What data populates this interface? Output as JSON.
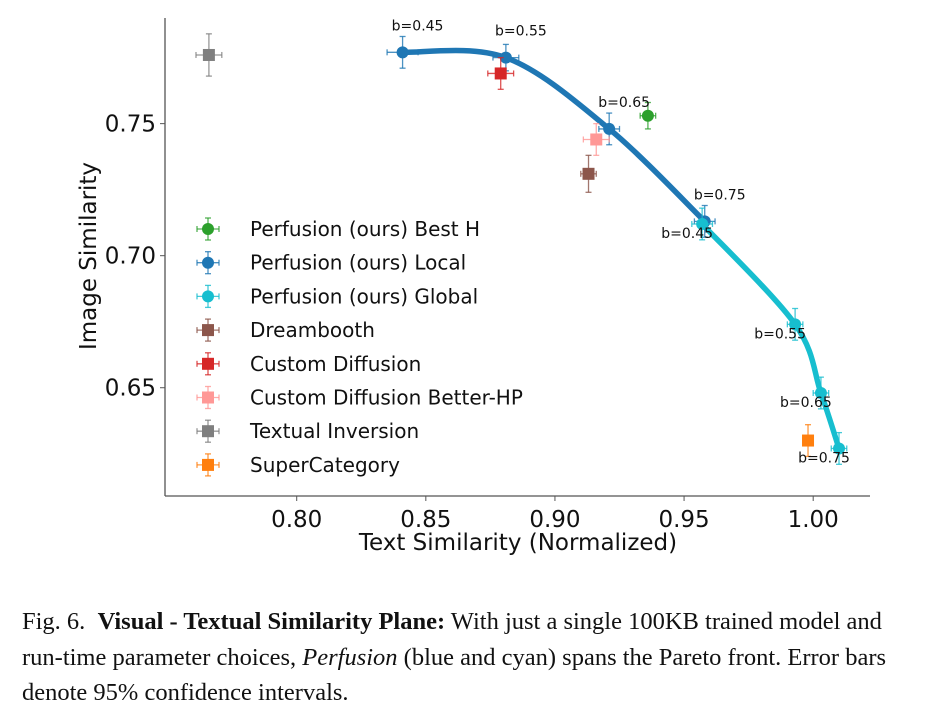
{
  "chart_data": {
    "type": "scatter",
    "xlabel": "Text Similarity (Normalized)",
    "ylabel": "Image Similarity",
    "xlim": [
      0.749,
      1.022
    ],
    "ylim": [
      0.609,
      0.79
    ],
    "xticks": [
      "0.80",
      "0.85",
      "0.90",
      "0.95",
      "1.00"
    ],
    "yticks": [
      "0.65",
      "0.70",
      "0.75"
    ],
    "grid": false,
    "legend_placement": "center-left",
    "series": [
      {
        "name": "Perfusion (ours) Best H",
        "color": "#2ca02c",
        "marker": "circle",
        "line": false,
        "points": [
          {
            "x": 0.936,
            "y": 0.753,
            "xerr": 0.003,
            "yerr": 0.005
          }
        ]
      },
      {
        "name": "Perfusion (ours) Local",
        "color": "#1f77b4",
        "marker": "circle",
        "line": true,
        "points": [
          {
            "x": 0.841,
            "y": 0.777,
            "xerr": 0.006,
            "yerr": 0.006,
            "label": "b=0.45"
          },
          {
            "x": 0.881,
            "y": 0.775,
            "xerr": 0.005,
            "yerr": 0.005,
            "label": "b=0.55"
          },
          {
            "x": 0.921,
            "y": 0.748,
            "xerr": 0.004,
            "yerr": 0.006,
            "label": "b=0.65"
          },
          {
            "x": 0.958,
            "y": 0.713,
            "xerr": 0.004,
            "yerr": 0.006,
            "label": "b=0.75"
          }
        ]
      },
      {
        "name": "Perfusion (ours) Global",
        "color": "#17becf",
        "marker": "circle",
        "line": true,
        "points": [
          {
            "x": 0.957,
            "y": 0.712,
            "xerr": 0.004,
            "yerr": 0.006,
            "label": "b=0.45"
          },
          {
            "x": 0.993,
            "y": 0.674,
            "xerr": 0.003,
            "yerr": 0.006,
            "label": "b=0.55"
          },
          {
            "x": 1.003,
            "y": 0.648,
            "xerr": 0.003,
            "yerr": 0.006,
            "label": "b=0.65"
          },
          {
            "x": 1.01,
            "y": 0.627,
            "xerr": 0.003,
            "yerr": 0.006,
            "label": "b=0.75"
          }
        ]
      },
      {
        "name": "Dreambooth",
        "color": "#8c564b",
        "marker": "square",
        "line": false,
        "points": [
          {
            "x": 0.913,
            "y": 0.731,
            "xerr": 0.003,
            "yerr": 0.007
          }
        ]
      },
      {
        "name": "Custom Diffusion",
        "color": "#d62728",
        "marker": "square",
        "line": false,
        "points": [
          {
            "x": 0.879,
            "y": 0.769,
            "xerr": 0.005,
            "yerr": 0.006
          }
        ]
      },
      {
        "name": "Custom Diffusion Better-HP",
        "color": "#ff9896",
        "marker": "square",
        "line": false,
        "points": [
          {
            "x": 0.916,
            "y": 0.744,
            "xerr": 0.005,
            "yerr": 0.006
          }
        ]
      },
      {
        "name": "Textual Inversion",
        "color": "#7f7f7f",
        "marker": "square",
        "line": false,
        "points": [
          {
            "x": 0.766,
            "y": 0.776,
            "xerr": 0.005,
            "yerr": 0.008
          }
        ]
      },
      {
        "name": "SuperCategory",
        "color": "#ff7f0e",
        "marker": "square",
        "line": false,
        "points": [
          {
            "x": 0.998,
            "y": 0.63,
            "xerr": 0.002,
            "yerr": 0.006
          }
        ]
      }
    ]
  },
  "caption": {
    "fig_label": "Fig. 6.",
    "title": "Visual - Textual Similarity Plane:",
    "text_1": " With just a single 100KB trained model and run-time parameter choices, ",
    "emph": "Perfusion",
    "text_2": " (blue and cyan) spans the Pareto front. Error bars denote 95% confidence intervals."
  }
}
